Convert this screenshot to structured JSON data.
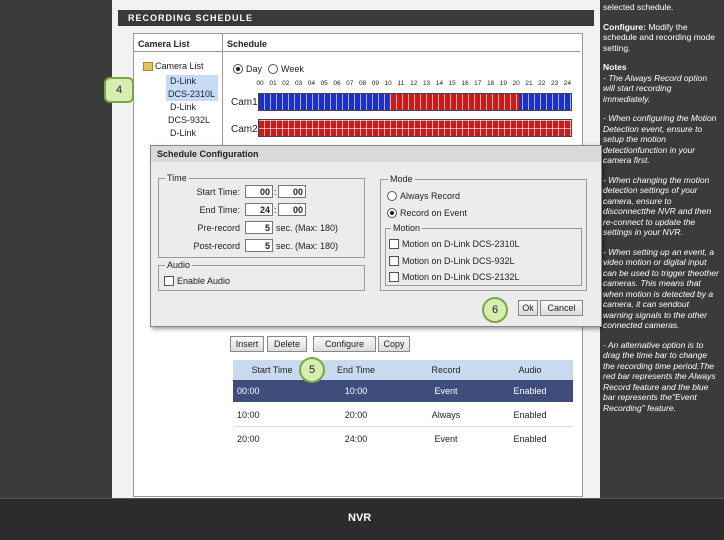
{
  "header": {
    "title": "RECORDING SCHEDULE"
  },
  "camera_list": {
    "heading": "Camera List",
    "root": "Camera List",
    "items": [
      "D-Link",
      "DCS-2310L",
      "D-Link",
      "DCS-932L",
      "D-Link"
    ]
  },
  "schedule": {
    "heading": "Schedule",
    "views": [
      "Day",
      "Week"
    ],
    "hours": [
      "00",
      "01",
      "02",
      "03",
      "04",
      "05",
      "06",
      "07",
      "08",
      "09",
      "10",
      "11",
      "12",
      "13",
      "14",
      "15",
      "16",
      "17",
      "18",
      "19",
      "20",
      "21",
      "22",
      "23",
      "24"
    ],
    "cameras": [
      "Cam1",
      "Cam2"
    ]
  },
  "dialog": {
    "title": "Schedule Configuration",
    "time": {
      "legend": "Time",
      "separator": ":",
      "start_label": "Start Time:",
      "start": [
        "00",
        "00"
      ],
      "end_label": "End Time:",
      "end": [
        "24",
        "00"
      ],
      "pre_label": "Pre-record",
      "pre": "5",
      "pre_unit": "sec. (Max: 180)",
      "post_label": "Post-record",
      "post": "5",
      "post_unit": "sec. (Max: 180)"
    },
    "audio": {
      "legend": "Audio",
      "option": "Enable Audio"
    },
    "mode": {
      "legend": "Mode",
      "options": [
        "Always Record",
        "Record on Event"
      ]
    },
    "motion": {
      "legend": "Motion",
      "options": [
        "Motion on D-Link DCS-2310L",
        "Motion on D-Link DCS-932L",
        "Motion on D-Link DCS-2132L"
      ]
    },
    "buttons": [
      "Ok",
      "Cancel"
    ]
  },
  "toolbar": [
    "Insert",
    "Delete",
    "Configure",
    "Copy"
  ],
  "table": {
    "columns": [
      "Start Time",
      "End Time",
      "Record",
      "Audio"
    ],
    "rows": [
      [
        "00:00",
        "10:00",
        "Event",
        "Enabled"
      ],
      [
        "10:00",
        "20:00",
        "Always",
        "Enabled"
      ],
      [
        "20:00",
        "24:00",
        "Event",
        "Enabled"
      ]
    ]
  },
  "callouts": [
    "4",
    "5",
    "6"
  ],
  "footer": "NVR",
  "sidebar": {
    "intro": "selected schedule.",
    "configure_label": "Configure:",
    "configure_text": "Modify the schedule and recording mode setting.",
    "notes_title": "Notes",
    "notes": [
      "- The Always Record option will start recording immediately.",
      "- When configuring the Motion Detection event, ensure to setup the motion detectionfunction in your camera first.",
      "- When changing the motion detection settings of your camera, ensure to disconnectthe NVR and then re-connect to update the settings in your NVR.",
      "- When setting up an event, a video motion or digital input can be used to trigger theother cameras. This means that when motion is detected by a camera, it can sendout warning signals to the other connected cameras.",
      "- An alternative option is to drag the time bar to change the recording time period.The red bar represents the Always Record feature and the blue bar represents the\"Event Recording\" feature."
    ]
  }
}
